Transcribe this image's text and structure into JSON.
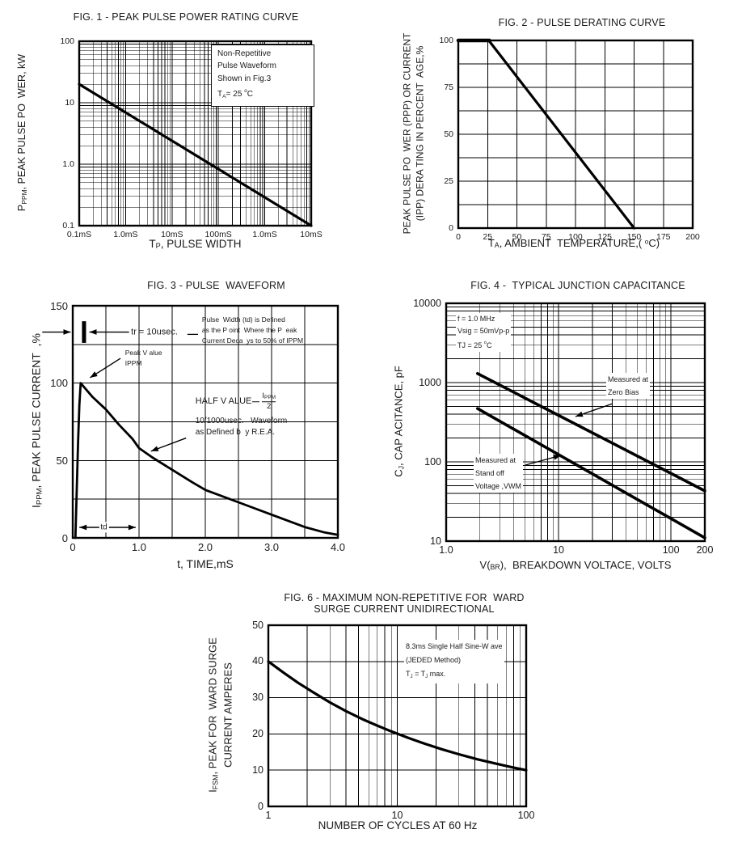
{
  "page": {
    "background": "#ffffff",
    "ink": "#111111"
  },
  "chart_data": [
    {
      "id": "fig1",
      "type": "line",
      "title": "FIG. 1 - PEAK PULSE POWER RATING CURVE",
      "ylabel": "P_{PPM}, PEAK PULSE PO  WER, kW",
      "xlabel": "T_{P}, PULSE WIDTH",
      "x_axis": {
        "scale": "log",
        "min": 0.1,
        "max": 10000
      },
      "y_axis": {
        "scale": "log",
        "min": 0.1,
        "max": 100
      },
      "x_ticks": [
        [
          0.1,
          "0.1mS"
        ],
        [
          1,
          "1.0mS"
        ],
        [
          10,
          "10mS"
        ],
        [
          100,
          "100mS"
        ],
        [
          1000,
          "1.0mS"
        ],
        [
          10000,
          "10mS"
        ]
      ],
      "y_ticks": [
        [
          100,
          "100"
        ],
        [
          10,
          "10"
        ],
        [
          1,
          "1.0"
        ],
        [
          0.1,
          "0.1"
        ]
      ],
      "series": [
        {
          "name": "peak-pulse-power-rating",
          "width": 3.2,
          "points": [
            [
              0.1,
              20
            ],
            [
              10000,
              0.1
            ]
          ]
        }
      ],
      "annotations": [
        {
          "kind": "textbox",
          "px": [
            163,
            4
          ],
          "w": 112,
          "size": 10,
          "lh": 15.3,
          "text": "Non-Repetitive\nPulse Waveform\nShown in Fig.3\nT_{A}= 25 ^{o}C"
        }
      ]
    },
    {
      "id": "fig2",
      "type": "line",
      "title": "FIG. 2 - PULSE DERATING CURVE",
      "ylabel": "PEAK PULSE PO  WER (PPP) OR CURRENT\n(IPP) DERA TING IN PERCENT  AGE,%",
      "xlabel": "T_{A}, AMBIENT  TEMPERATURE,( ^{o}C)",
      "x_axis": {
        "scale": "linear",
        "min": 0,
        "max": 200,
        "grid": 25
      },
      "y_axis": {
        "scale": "linear",
        "min": 0,
        "max": 100,
        "grid": 12.5
      },
      "x_ticks": [
        [
          0,
          "0"
        ],
        [
          25,
          "25"
        ],
        [
          50,
          "50"
        ],
        [
          75,
          "75"
        ],
        [
          100,
          "100"
        ],
        [
          125,
          "125"
        ],
        [
          150,
          "150"
        ],
        [
          175,
          "175"
        ],
        [
          200,
          "200"
        ]
      ],
      "y_ticks": [
        [
          100,
          "100"
        ],
        [
          75,
          "75"
        ],
        [
          50,
          "50"
        ],
        [
          25,
          "25"
        ],
        [
          0,
          "0"
        ]
      ],
      "series": [
        {
          "name": "derating-flat",
          "width": 4.6,
          "points": [
            [
              0,
              100
            ],
            [
              26.5,
              100
            ]
          ]
        },
        {
          "name": "derating-slope",
          "width": 3.2,
          "points": [
            [
              26,
              100
            ],
            [
              150,
              0
            ]
          ]
        }
      ],
      "annotations": []
    },
    {
      "id": "fig3",
      "type": "line",
      "title": "FIG. 3 - PULSE  WAVEFORM",
      "ylabel": "I_{PPM}, PEAK PULSE CURRENT  ,%",
      "xlabel": "t, TIME,mS",
      "x_axis": {
        "scale": "linear",
        "min": 0,
        "max": 4,
        "grid": 0.5
      },
      "y_axis": {
        "scale": "linear",
        "min": 0,
        "max": 150,
        "grid": 25
      },
      "x_ticks": [
        [
          0,
          "0"
        ],
        [
          1,
          "1.0"
        ],
        [
          2,
          "2.0"
        ],
        [
          3,
          "3.0"
        ],
        [
          4,
          "4.0"
        ]
      ],
      "y_ticks": [
        [
          150,
          "150"
        ],
        [
          100,
          "100"
        ],
        [
          50,
          "50"
        ],
        [
          0,
          "0"
        ]
      ],
      "series": [
        {
          "name": "pulse-waveform",
          "width": 2.8,
          "points": [
            [
              0.04,
              0
            ],
            [
              0.06,
              30
            ],
            [
              0.08,
              62
            ],
            [
              0.1,
              86
            ],
            [
              0.12,
              100
            ],
            [
              0.3,
              91
            ],
            [
              0.5,
              83
            ],
            [
              0.7,
              73
            ],
            [
              0.9,
              64
            ],
            [
              1.0,
              58
            ],
            [
              1.2,
              52
            ],
            [
              1.5,
              44
            ],
            [
              1.8,
              36
            ],
            [
              2.0,
              31
            ],
            [
              2.5,
              23
            ],
            [
              3.0,
              15
            ],
            [
              3.5,
              7
            ],
            [
              3.8,
              3.5
            ],
            [
              4.0,
              2
            ]
          ]
        }
      ],
      "annotations": [
        {
          "kind": "arrow",
          "from": [
            -0.46,
            133
          ],
          "to": [
            -0.03,
            133
          ]
        },
        {
          "kind": "vbar",
          "x": 0.17,
          "y1": 126,
          "y2": 140,
          "w": 5
        },
        {
          "kind": "arrow",
          "from": [
            0.85,
            133
          ],
          "to": [
            0.25,
            133
          ]
        },
        {
          "kind": "text",
          "at": [
            0.88,
            133
          ],
          "anchor": "lm",
          "size": 11,
          "text": "tr = 10usec."
        },
        {
          "kind": "line",
          "from": [
            1.73,
            131.5
          ],
          "to": [
            1.89,
            131.5
          ]
        },
        {
          "kind": "text",
          "at": [
            1.95,
            144
          ],
          "anchor": "lt",
          "size": 8.5,
          "lh": 13,
          "text": "Pulse  Width (td) is Defined\nas the P oint  Where the P  eak\nCurrent Deca  ys to 50% of IPPM"
        },
        {
          "kind": "text",
          "at": [
            0.79,
            123
          ],
          "anchor": "lt",
          "size": 8.5,
          "lh": 13,
          "text": "Peak V alue\nIPPM"
        },
        {
          "kind": "arrow",
          "from": [
            0.72,
            116
          ],
          "to": [
            0.26,
            103.5
          ]
        },
        {
          "kind": "halfvalue",
          "at": [
            1.85,
            88
          ],
          "size": 11,
          "text": "HALF V ALUE",
          "num": "I_{PPM}",
          "den": "2"
        },
        {
          "kind": "text",
          "at": [
            1.85,
            79
          ],
          "anchor": "lt",
          "size": 10,
          "lh": 14.5,
          "text": "10/1000usec.   Waveform\nas Defined b  y R.E.A."
        },
        {
          "kind": "arrow",
          "from": [
            1.71,
            64.5
          ],
          "to": [
            1.18,
            56
          ]
        },
        {
          "kind": "darrow",
          "from": [
            0.1,
            6.8
          ],
          "to": [
            0.95,
            6.8
          ]
        },
        {
          "kind": "text",
          "at": [
            0.47,
            6.8
          ],
          "anchor": "cm",
          "size": 10,
          "bg": true,
          "text": "td"
        }
      ]
    },
    {
      "id": "fig4",
      "type": "line",
      "title": "FIG. 4 -  TYPICAL JUNCTION CAPACITANCE",
      "ylabel": "C_{J}, CAP ACITANCE, pF",
      "xlabel": "V(_{BR}),  BREAKDOWN VOLTACE, VOLTS",
      "x_axis": {
        "scale": "log",
        "min": 1,
        "max": 200
      },
      "y_axis": {
        "scale": "log",
        "min": 10,
        "max": 10000
      },
      "x_ticks": [
        [
          1,
          "1.0"
        ],
        [
          10,
          "10"
        ],
        [
          100,
          "100"
        ],
        [
          200,
          "200"
        ]
      ],
      "y_ticks": [
        [
          10000,
          "10000"
        ],
        [
          1000,
          "1000"
        ],
        [
          100,
          "100"
        ],
        [
          10,
          "10"
        ]
      ],
      "series": [
        {
          "name": "measured-at-zero-bias",
          "width": 3.6,
          "points": [
            [
              1.9,
              1300
            ],
            [
              200,
              43
            ]
          ]
        },
        {
          "name": "measured-at-standoff-voltage",
          "width": 3.6,
          "points": [
            [
              1.9,
              470
            ],
            [
              200,
              11
            ]
          ]
        }
      ],
      "annotations": [
        {
          "kind": "text",
          "px": [
            12,
            12
          ],
          "anchor": "lt",
          "size": 9,
          "lh": 15,
          "bg": true,
          "text": "f = 1.0 MHz\nVsig = 50mVp-p\nTJ = 25 ^{o}C"
        },
        {
          "kind": "text",
          "px": [
            198,
            86
          ],
          "anchor": "lt",
          "size": 9,
          "lh": 16,
          "bg": true,
          "text": "Measured at\nZero Bias"
        },
        {
          "kind": "arrow",
          "pxfrom": [
            206,
            124
          ],
          "pxto": [
            160,
            140
          ]
        },
        {
          "kind": "text",
          "px": [
            34,
            186
          ],
          "anchor": "lt",
          "size": 9,
          "lh": 16,
          "bg": true,
          "text": "Measured at\nStand off\nVoltage ,VWM"
        },
        {
          "kind": "arrow",
          "pxfrom": [
            98,
            200
          ],
          "pxto": [
            142,
            188
          ]
        }
      ]
    },
    {
      "id": "fig6",
      "type": "line",
      "title": "FIG. 6 - MAXIMUM NON-REPETITIVE FOR  WARD\nSURGE CURRENT UNIDIRECTIONAL",
      "ylabel": "I_{FSM}, PEAK FOR  WARD SURGE\nCURRENT AMPERES",
      "xlabel": "NUMBER OF CYCLES AT 60 Hz",
      "x_axis": {
        "scale": "log",
        "min": 1,
        "max": 100
      },
      "y_axis": {
        "scale": "linear",
        "min": 0,
        "max": 50,
        "grid": 10
      },
      "x_ticks": [
        [
          1,
          "1"
        ],
        [
          10,
          "10"
        ],
        [
          100,
          "100"
        ]
      ],
      "y_ticks": [
        [
          50,
          "50"
        ],
        [
          40,
          "40"
        ],
        [
          30,
          "30"
        ],
        [
          20,
          "20"
        ],
        [
          10,
          "10"
        ],
        [
          0,
          "0"
        ]
      ],
      "series": [
        {
          "name": "max-forward-surge-current",
          "width": 3.2,
          "points": [
            [
              1,
              40
            ],
            [
              1.3,
              37.0
            ],
            [
              1.7,
              34.1
            ],
            [
              2.2,
              31.6
            ],
            [
              3,
              28.7
            ],
            [
              4,
              26.3
            ],
            [
              5.5,
              23.9
            ],
            [
              7,
              22.3
            ],
            [
              9,
              20.7
            ],
            [
              12,
              19.0
            ],
            [
              16,
              17.4
            ],
            [
              22,
              15.8
            ],
            [
              30,
              14.4
            ],
            [
              42,
              13.0
            ],
            [
              60,
              11.7
            ],
            [
              80,
              10.7
            ],
            [
              100,
              10
            ]
          ]
        }
      ],
      "annotations": [
        {
          "kind": "text",
          "px": [
            168,
            18
          ],
          "anchor": "lt",
          "size": 9,
          "lh": 17,
          "bg": true,
          "text": "8.3ms Single Half Sine-W ave\n(JEDED Method)\nT_{J} = T_{J} max."
        }
      ]
    }
  ]
}
